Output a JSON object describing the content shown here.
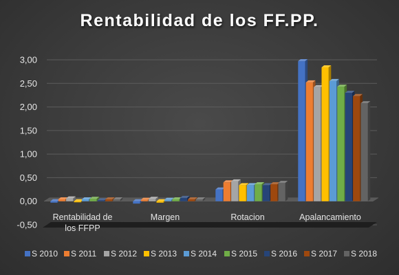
{
  "chart_data": {
    "type": "bar",
    "title": "Rentabilidad de los FF.PP.",
    "categories": [
      [
        "Rentabilidad de",
        "los FFPP"
      ],
      [
        "Margen"
      ],
      [
        "Rotacion"
      ],
      [
        "Apalancamiento"
      ]
    ],
    "ylim": [
      -0.5,
      3.0
    ],
    "yticks": [
      "-0,50",
      "0,00",
      "0,50",
      "1,00",
      "1,50",
      "2,00",
      "2,50",
      "3,00"
    ],
    "ytick_values": [
      -0.5,
      0,
      0.5,
      1.0,
      1.5,
      2.0,
      2.5,
      3.0
    ],
    "grid": true,
    "legend_position": "bottom",
    "series": [
      {
        "name": "S 2010",
        "color": "#4472c4",
        "values": [
          -0.03,
          -0.05,
          0.25,
          2.97
        ]
      },
      {
        "name": "S 2011",
        "color": "#ed7d31",
        "values": [
          0.04,
          0.03,
          0.4,
          2.52
        ]
      },
      {
        "name": "S 2012",
        "color": "#a5a5a5",
        "values": [
          0.06,
          0.05,
          0.42,
          2.42
        ]
      },
      {
        "name": "S 2013",
        "color": "#ffc000",
        "values": [
          -0.02,
          -0.03,
          0.34,
          2.84
        ]
      },
      {
        "name": "S 2014",
        "color": "#5b9bd5",
        "values": [
          0.04,
          0.03,
          0.34,
          2.55
        ]
      },
      {
        "name": "S 2015",
        "color": "#70ad47",
        "values": [
          0.05,
          0.04,
          0.36,
          2.43
        ]
      },
      {
        "name": "S 2016",
        "color": "#264478",
        "values": [
          0.02,
          0.07,
          0.34,
          2.3
        ]
      },
      {
        "name": "S 2017",
        "color": "#9e480e",
        "values": [
          0.04,
          0.04,
          0.36,
          2.23
        ]
      },
      {
        "name": "S 2018",
        "color": "#636363",
        "values": [
          0.04,
          0.04,
          0.39,
          2.08
        ]
      }
    ]
  }
}
